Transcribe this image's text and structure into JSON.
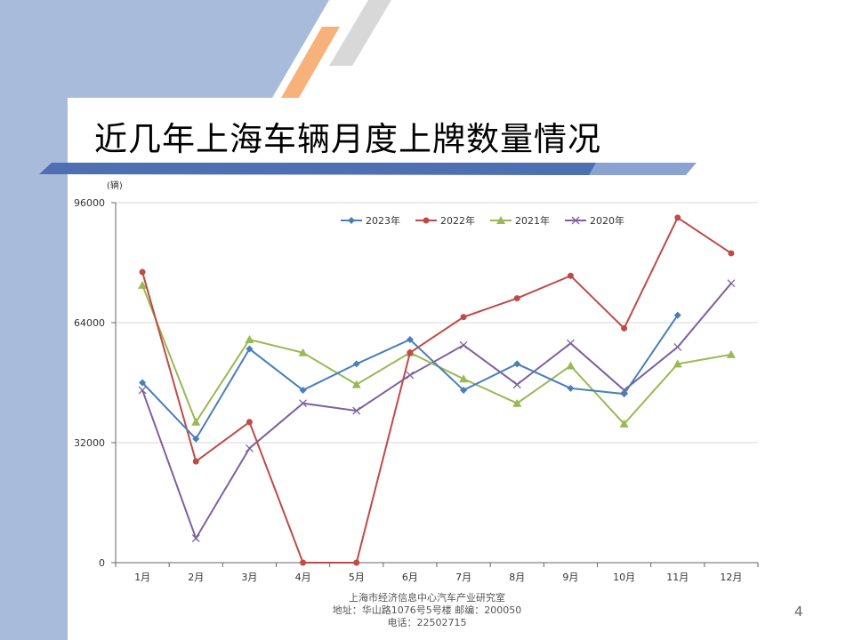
{
  "slide": {
    "title": "近几年上海车辆月度上牌数量情况",
    "page_number": "4",
    "footer": {
      "line1": "上海市经济信息中心汽车产业研究室",
      "line2": "地址：华山路1076号5号楼   邮编：200050",
      "line3": "电话：22502715"
    }
  },
  "colors": {
    "sidebar": "#a9bbdb",
    "title_bar": "#4f6fb3",
    "accent_orange": "#f7b27c",
    "accent_gray": "#d8d8d8"
  },
  "chart_data": {
    "type": "line",
    "title": "",
    "xlabel": "",
    "ylabel": "(辆)",
    "categories": [
      "1月",
      "2月",
      "3月",
      "4月",
      "5月",
      "6月",
      "7月",
      "8月",
      "9月",
      "10月",
      "11月",
      "12月"
    ],
    "ylim": [
      0,
      96000
    ],
    "yticks": [
      0,
      32000,
      64000,
      96000
    ],
    "grid": true,
    "legend_position": "top-right",
    "series": [
      {
        "name": "2023年",
        "color": "#4a7ebb",
        "marker": "diamond",
        "values": [
          48000,
          33000,
          57000,
          46000,
          53000,
          59500,
          46000,
          53000,
          46500,
          45000,
          66000,
          null
        ]
      },
      {
        "name": "2022年",
        "color": "#be4b48",
        "marker": "circle",
        "values": [
          77500,
          27000,
          37500,
          0,
          0,
          56000,
          65500,
          70500,
          76500,
          62500,
          92000,
          82500
        ]
      },
      {
        "name": "2021年",
        "color": "#98b954",
        "marker": "triangle",
        "values": [
          74000,
          37500,
          59500,
          56000,
          47500,
          56000,
          49000,
          42500,
          52500,
          37000,
          53000,
          55500
        ]
      },
      {
        "name": "2020年",
        "color": "#7d60a0",
        "marker": "x",
        "values": [
          46000,
          6500,
          30500,
          42500,
          40500,
          50000,
          58000,
          47500,
          58500,
          46000,
          57500,
          74500
        ]
      }
    ]
  }
}
